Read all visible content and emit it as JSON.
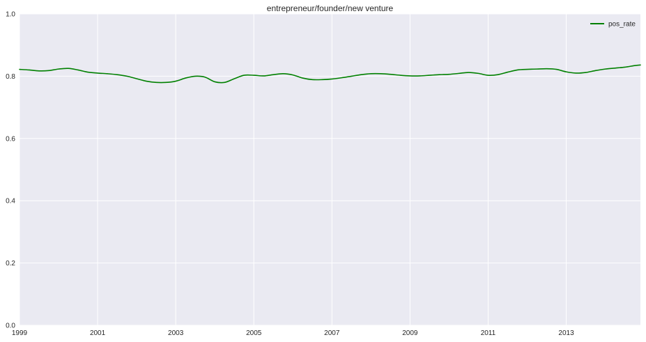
{
  "chart_data": {
    "type": "line",
    "title": "entrepreneur/founder/new venture",
    "xlabel": "",
    "ylabel": "",
    "xlim": [
      1999,
      2014.9
    ],
    "ylim": [
      0.0,
      1.0
    ],
    "x_ticks": [
      "1999",
      "2001",
      "2003",
      "2005",
      "2007",
      "2009",
      "2011",
      "2013"
    ],
    "y_ticks": [
      "0.0",
      "0.2",
      "0.4",
      "0.6",
      "0.8",
      "1.0"
    ],
    "grid": true,
    "legend_position": "top-right",
    "background_color": "#eaeaf2",
    "grid_color": "#ffffff",
    "series": [
      {
        "name": "pos_rate",
        "color": "#008000",
        "x": [
          1999.0,
          1999.25,
          1999.5,
          1999.75,
          2000.0,
          2000.25,
          2000.5,
          2000.75,
          2001.0,
          2001.25,
          2001.5,
          2001.75,
          2002.0,
          2002.25,
          2002.5,
          2002.75,
          2003.0,
          2003.25,
          2003.5,
          2003.75,
          2004.0,
          2004.25,
          2004.5,
          2004.75,
          2005.0,
          2005.25,
          2005.5,
          2005.75,
          2006.0,
          2006.25,
          2006.5,
          2006.75,
          2007.0,
          2007.25,
          2007.5,
          2007.75,
          2008.0,
          2008.25,
          2008.5,
          2008.75,
          2009.0,
          2009.25,
          2009.5,
          2009.75,
          2010.0,
          2010.25,
          2010.5,
          2010.75,
          2011.0,
          2011.25,
          2011.5,
          2011.75,
          2012.0,
          2012.25,
          2012.5,
          2012.75,
          2013.0,
          2013.25,
          2013.5,
          2013.75,
          2014.0,
          2014.25,
          2014.5,
          2014.75,
          2014.9
        ],
        "values": [
          0.822,
          0.82,
          0.817,
          0.818,
          0.823,
          0.825,
          0.82,
          0.813,
          0.81,
          0.808,
          0.805,
          0.8,
          0.792,
          0.784,
          0.78,
          0.78,
          0.784,
          0.794,
          0.8,
          0.797,
          0.782,
          0.78,
          0.792,
          0.803,
          0.803,
          0.801,
          0.805,
          0.808,
          0.804,
          0.794,
          0.789,
          0.789,
          0.791,
          0.795,
          0.8,
          0.805,
          0.808,
          0.808,
          0.806,
          0.803,
          0.801,
          0.801,
          0.803,
          0.805,
          0.806,
          0.809,
          0.812,
          0.809,
          0.803,
          0.805,
          0.813,
          0.82,
          0.822,
          0.823,
          0.824,
          0.822,
          0.814,
          0.81,
          0.812,
          0.818,
          0.823,
          0.826,
          0.829,
          0.834,
          0.836
        ]
      }
    ]
  }
}
